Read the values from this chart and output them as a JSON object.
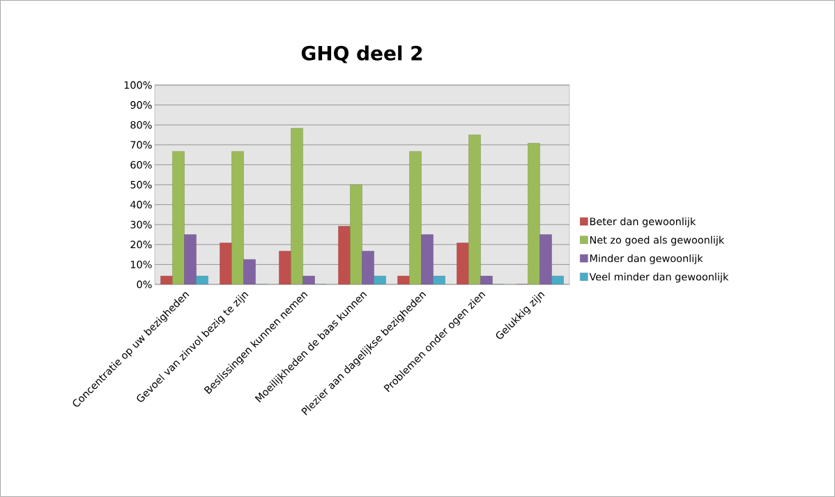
{
  "chart_data": {
    "type": "bar",
    "title": "GHQ deel 2",
    "categories": [
      "Concentratie op uw bezigheden",
      "Gevoel van zinvol bezig te zijn",
      "Beslissingen kunnen nemen",
      "Moeilijkheden de baas kunnen",
      "Plezier aan dagelijkse bezigheden",
      "Problemen onder ogen zien",
      "Gelukkig zijn"
    ],
    "series": [
      {
        "name": "Beter dan gewoonlijk",
        "color": "#c0504d",
        "values": [
          4.2,
          20.8,
          16.7,
          29.2,
          4.2,
          20.8,
          0
        ]
      },
      {
        "name": "Net zo goed als gewoonlijk",
        "color": "#9bbb59",
        "values": [
          66.7,
          66.7,
          78.3,
          50,
          66.7,
          75,
          70.8
        ]
      },
      {
        "name": "Minder dan gewoonlijk",
        "color": "#8064a2",
        "values": [
          25,
          12.5,
          4.2,
          16.7,
          25,
          4.2,
          25
        ]
      },
      {
        "name": "Veel minder dan gewoonlijk",
        "color": "#4bacc6",
        "values": [
          4.2,
          0,
          0,
          4.2,
          4.2,
          0,
          4.2
        ]
      }
    ],
    "ylim": [
      0,
      100
    ],
    "yticks": [
      {
        "value": 0,
        "label": "0%"
      },
      {
        "value": 10,
        "label": "10%"
      },
      {
        "value": 20,
        "label": "20%"
      },
      {
        "value": 30,
        "label": "30%"
      },
      {
        "value": 40,
        "label": "40%"
      },
      {
        "value": 50,
        "label": "50%"
      },
      {
        "value": 60,
        "label": "60%"
      },
      {
        "value": 70,
        "label": "70%"
      },
      {
        "value": 80,
        "label": "80%"
      },
      {
        "value": 90,
        "label": "90%"
      },
      {
        "value": 100,
        "label": "100%"
      }
    ],
    "grid": "y",
    "legend": "right"
  }
}
